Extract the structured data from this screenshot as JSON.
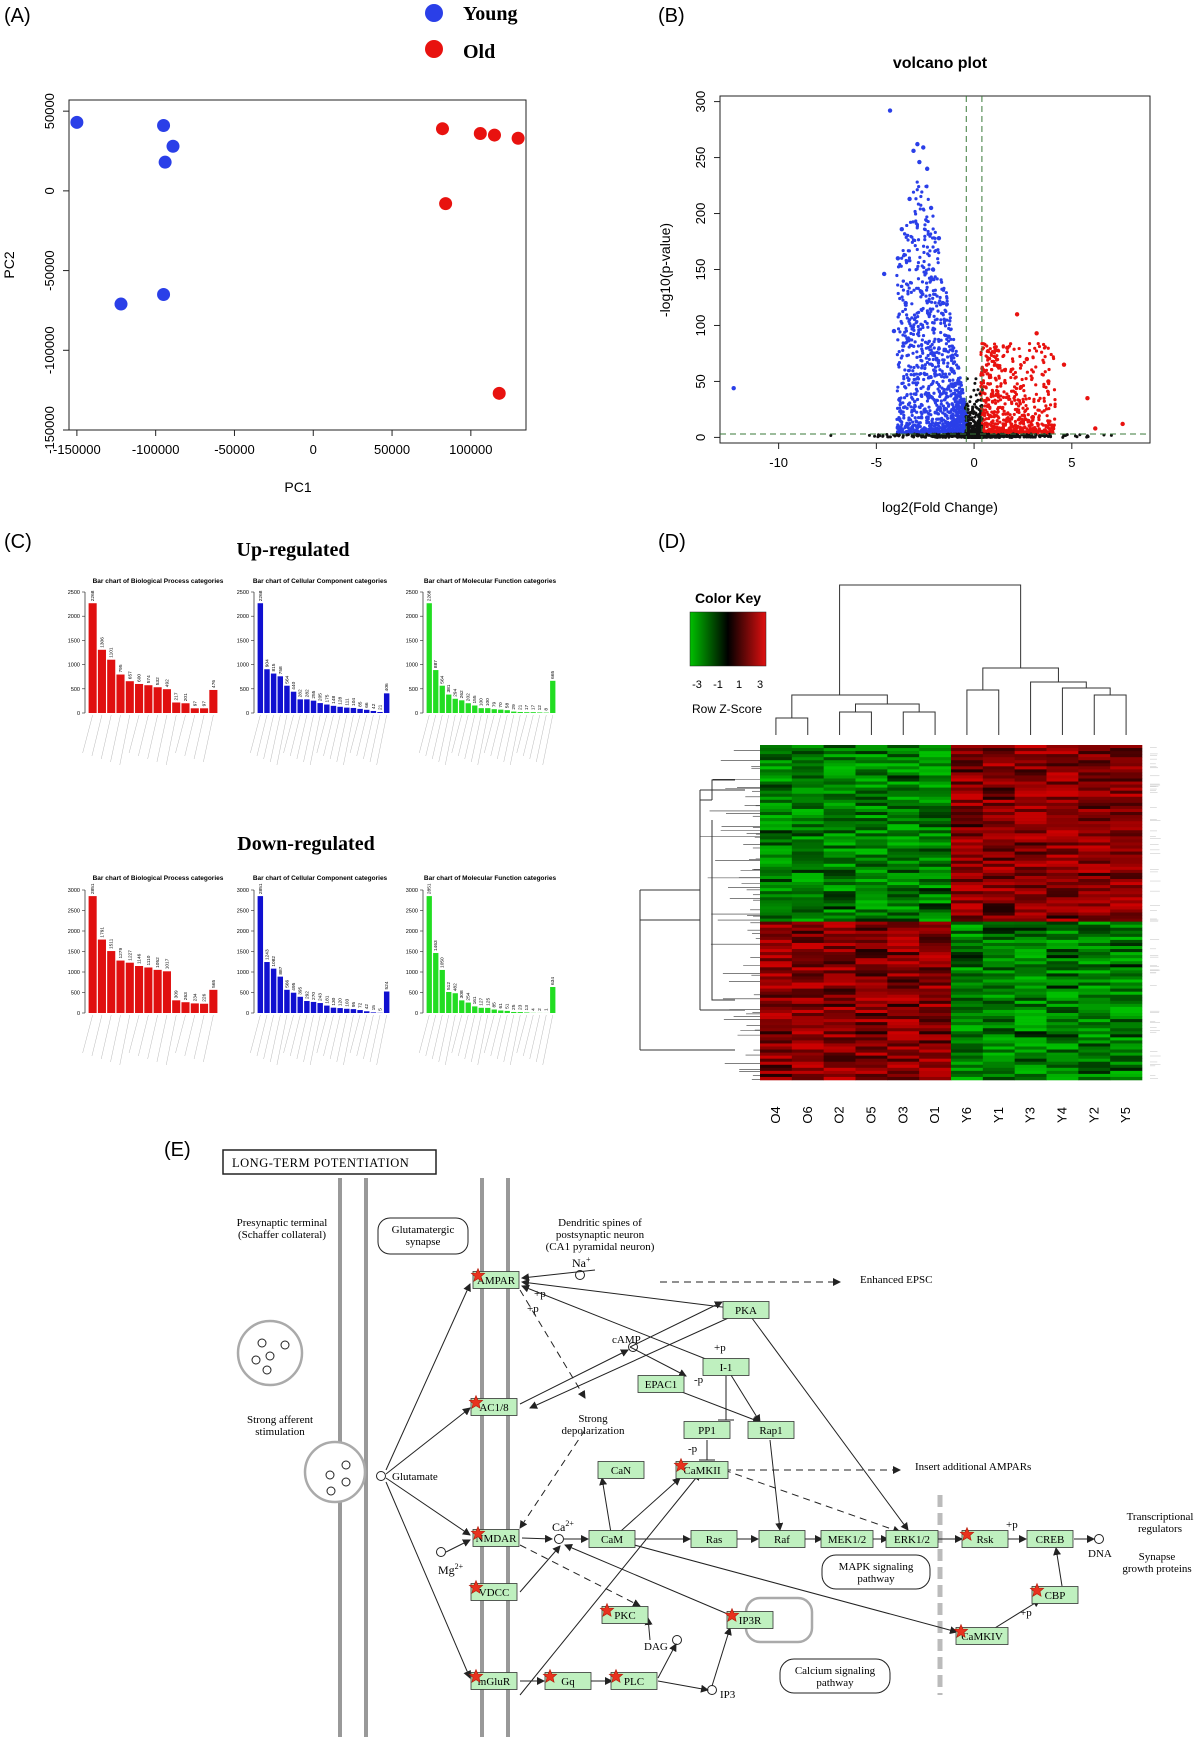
{
  "panels": [
    "(A)",
    "(B)",
    "(C)",
    "(D)",
    "(E)"
  ],
  "colors": {
    "young": "#2a3fe8",
    "old": "#e8120f",
    "bp": "#e01010",
    "cc": "#1010d0",
    "mf": "#22dd22",
    "node": "#bff0bf",
    "star": "#e8321e"
  },
  "chart_data": [
    {
      "type": "scatter",
      "panel": "(A)",
      "xlabel": "PC1",
      "ylabel": "PC2",
      "xticks": [
        "-150000",
        "-100000",
        "-50000",
        "0",
        "50000",
        "100000"
      ],
      "yticks": [
        "-150000",
        "-100000",
        "-50000",
        "0",
        "50000"
      ],
      "xlim": [
        -155000,
        135000
      ],
      "ylim": [
        -150000,
        57000
      ],
      "legend": [
        "Young",
        "Old"
      ],
      "legend_placement": "top",
      "series": [
        {
          "name": "Young",
          "points": [
            [
              -150000,
              43000
            ],
            [
              -95000,
              41000
            ],
            [
              -89000,
              28000
            ],
            [
              -94000,
              18000
            ],
            [
              -122000,
              -71000
            ],
            [
              -95000,
              -65000
            ]
          ]
        },
        {
          "name": "Old",
          "points": [
            [
              82000,
              39000
            ],
            [
              106000,
              36000
            ],
            [
              115000,
              35000
            ],
            [
              130000,
              33000
            ],
            [
              84000,
              -8000
            ],
            [
              118000,
              -127000
            ]
          ]
        }
      ]
    },
    {
      "type": "scatter",
      "panel": "(B)",
      "title": "volcano plot",
      "xlabel": "log2(Fold Change)",
      "ylabel": "-log10(p-value)",
      "xticks": [
        "-10",
        "-5",
        "0",
        "5"
      ],
      "yticks": [
        "0",
        "50",
        "100",
        "150",
        "200",
        "250",
        "300"
      ],
      "xlim": [
        -13,
        9
      ],
      "ylim": [
        -5,
        305
      ],
      "thresholds": {
        "vertical": [
          -0.4,
          0.4
        ],
        "horizontal": 3
      },
      "series": [
        {
          "name": "down",
          "points": [
            [
              -4.3,
              292
            ],
            [
              -2.9,
              262
            ],
            [
              -2.6,
              259
            ],
            [
              -3.1,
              256
            ],
            [
              -2.8,
              246
            ],
            [
              -2.4,
              240
            ],
            [
              -3.3,
              213
            ],
            [
              -2.2,
              205
            ],
            [
              -3.7,
              186
            ],
            [
              -1.8,
              178
            ],
            [
              -4.6,
              146
            ],
            [
              -3.9,
              160
            ],
            [
              -2.1,
              150
            ],
            [
              -12.3,
              44
            ],
            [
              -3.5,
              120
            ],
            [
              -2.7,
              130
            ],
            [
              -1.6,
              120
            ],
            [
              -4.1,
              95
            ],
            [
              -2.3,
              110
            ],
            [
              -1.3,
              90
            ]
          ]
        },
        {
          "name": "up",
          "points": [
            [
              2.2,
              110
            ],
            [
              3.2,
              93
            ],
            [
              1.7,
              80
            ],
            [
              4.6,
              65
            ],
            [
              2.7,
              70
            ],
            [
              1.2,
              64
            ],
            [
              5.8,
              35
            ],
            [
              3.8,
              50
            ],
            [
              1.1,
              78
            ],
            [
              7.6,
              12
            ],
            [
              6.2,
              8
            ],
            [
              2.4,
              45
            ]
          ]
        }
      ]
    },
    {
      "type": "bar",
      "panel": "(C)",
      "group": "Up-regulated",
      "charts": [
        {
          "title": "Bar chart of Biological Process categories",
          "values": [
            2268,
            1306,
            1101,
            795,
            657,
            600,
            574,
            532,
            492,
            217,
            201,
            97,
            97,
            476
          ],
          "ymax": 2500,
          "yticks": [
            "0",
            "500",
            "1000",
            "1500",
            "2000",
            "2500"
          ]
        },
        {
          "title": "Bar chart of Cellular Component categories",
          "values": [
            2268,
            904,
            815,
            758,
            564,
            440,
            282,
            282,
            255,
            205,
            175,
            148,
            128,
            111,
            104,
            85,
            66,
            42,
            21,
            406
          ],
          "ymax": 2500,
          "yticks": [
            "0",
            "500",
            "1000",
            "1500",
            "2000",
            "2500"
          ]
        },
        {
          "title": "Bar chart of Molecular Function categories",
          "values": [
            2268,
            887,
            564,
            381,
            294,
            262,
            202,
            155,
            100,
            100,
            79,
            70,
            58,
            29,
            21,
            17,
            17,
            12,
            8,
            665
          ],
          "ymax": 2500,
          "yticks": [
            "0",
            "500",
            "1000",
            "1500",
            "2000",
            "2500"
          ]
        }
      ]
    },
    {
      "type": "bar",
      "panel": "(C)",
      "group": "Down-regulated",
      "charts": [
        {
          "title": "Bar chart of Biological Process categories",
          "values": [
            2851,
            1791,
            1511,
            1279,
            1227,
            1146,
            1110,
            1052,
            1017,
            309,
            263,
            234,
            226,
            565
          ],
          "ymax": 3000,
          "yticks": [
            "0",
            "500",
            "1000",
            "1500",
            "2000",
            "2500",
            "3000"
          ]
        },
        {
          "title": "Bar chart of Cellular Component categories",
          "values": [
            2851,
            1243,
            1082,
            887,
            566,
            495,
            395,
            292,
            270,
            243,
            181,
            130,
            120,
            103,
            95,
            72,
            42,
            15,
            5,
            524
          ],
          "ymax": 3000,
          "yticks": [
            "0",
            "500",
            "1000",
            "1500",
            "2000",
            "2500",
            "3000"
          ]
        },
        {
          "title": "Bar chart of Molecular Function categories",
          "values": [
            2851,
            1463,
            1050,
            512,
            482,
            308,
            254,
            161,
            127,
            125,
            85,
            61,
            51,
            25,
            23,
            13,
            4,
            2,
            1,
            634
          ],
          "ymax": 3000,
          "yticks": [
            "0",
            "500",
            "1000",
            "1500",
            "2000",
            "2500",
            "3000"
          ]
        }
      ]
    },
    {
      "type": "heatmap",
      "panel": "(D)",
      "color_key": {
        "title": "Color Key",
        "subtitle": "Row Z-Score",
        "ticks": [
          "-3",
          "-1",
          "1",
          "3"
        ]
      },
      "columns": [
        "O4",
        "O6",
        "O2",
        "O5",
        "O3",
        "O1",
        "Y6",
        "Y1",
        "Y3",
        "Y4",
        "Y2",
        "Y5"
      ]
    }
  ],
  "kegg": {
    "title": "LONG-TERM POTENTIATION",
    "labels": {
      "presyn": [
        "Presynaptic terminal",
        "(Schaffer collateral)"
      ],
      "glutamatergic": [
        "Glutamatergic",
        "synapse"
      ],
      "dendritic": [
        "Dendritic spines of",
        "postsynaptic neuron",
        "(CA1 pyramidal neuron)"
      ],
      "strong_aff": [
        "Strong afferent",
        "stimulation"
      ],
      "glutamate": "Glutamate",
      "na": "Na",
      "plus": "+",
      "ca": "Ca",
      "two_plus": "2+",
      "mg": "Mg",
      "enhanced": "Enhanced EPSC",
      "camp": "cAMP",
      "plus_p": "+p",
      "minus_p": "-p",
      "strong_depol": [
        "Strong",
        "depolarization"
      ],
      "insert": "Insert additional AMPARs",
      "mapk": [
        "MAPK signaling",
        "pathway"
      ],
      "calcium": [
        "Calcium signaling",
        "pathway"
      ],
      "transcr": [
        "Transcriptional",
        "regulators"
      ],
      "synapse_growth": [
        "Synapse",
        "growth proteins"
      ],
      "dna": "DNA",
      "dag": "DAG",
      "ip3": "IP3"
    },
    "nodes": {
      "ampar": "AMPAR",
      "pka": "PKA",
      "i1": "I-1",
      "epac1": "EPAC1",
      "ac18": "AC1/8",
      "pp1": "PP1",
      "rap1": "Rap1",
      "can": "CaN",
      "camkii": "CaMKII",
      "nmdar": "NMDAR",
      "cam": "CaM",
      "ras": "Ras",
      "raf": "Raf",
      "mek12": "MEK1/2",
      "erk12": "ERK1/2",
      "rsk": "Rsk",
      "creb": "CREB",
      "cbp": "CBP",
      "vdcc": "VDCC",
      "pkc": "PKC",
      "ip3r": "IP3R",
      "camkiv": "CaMKIV",
      "mglur": "mGluR",
      "gq": "Gq",
      "plc": "PLC"
    }
  }
}
